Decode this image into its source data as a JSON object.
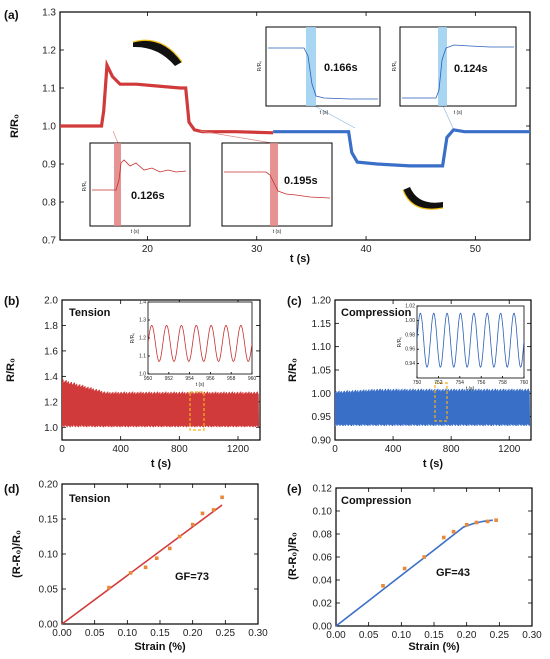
{
  "figure": {
    "panel_labels": [
      "(a)",
      "(b)",
      "(c)",
      "(d)",
      "(e)"
    ],
    "annotations": {
      "b_title": "Tension",
      "c_title": "Compression",
      "d_title": "Tension",
      "e_title": "Compression",
      "d_gf": "GF=73",
      "e_gf": "GF=43",
      "a_time_1": "0.126s",
      "a_time_2": "0.195s",
      "a_time_3": "0.166s",
      "a_time_4": "0.124s"
    }
  },
  "chart_data": [
    {
      "id": "a",
      "type": "line",
      "xlabel": "t (s)",
      "ylabel": "R/R₀",
      "xlim": [
        12,
        55
      ],
      "ylim": [
        0.7,
        1.3
      ],
      "xticks": [
        20,
        30,
        40,
        50
      ],
      "yticks": [
        0.7,
        0.8,
        0.9,
        1.0,
        1.1,
        1.2,
        1.3
      ],
      "series": [
        {
          "color": "#d13a3a",
          "x": [
            12,
            14,
            15.8,
            16.0,
            16.3,
            16.8,
            17.5,
            19,
            21,
            23,
            23.5,
            23.8,
            24.3,
            25,
            28,
            31.5
          ],
          "y": [
            1.0,
            1.0,
            1.0,
            1.04,
            1.16,
            1.13,
            1.11,
            1.11,
            1.105,
            1.1,
            1.1,
            1.01,
            0.99,
            0.985,
            0.985,
            0.982
          ]
        },
        {
          "color": "#3a6fc8",
          "x": [
            31.5,
            33,
            35,
            37,
            38.4,
            38.7,
            39.2,
            41,
            44,
            47.0,
            47.4,
            48.0,
            49,
            52,
            55
          ],
          "y": [
            0.985,
            0.985,
            0.985,
            0.985,
            0.985,
            0.93,
            0.905,
            0.9,
            0.895,
            0.895,
            0.97,
            0.99,
            0.985,
            0.985,
            0.985
          ]
        }
      ],
      "insets": [
        {
          "xlabel": "t (s)",
          "ylabel": "R/R₀",
          "label": "0.126s"
        },
        {
          "xlabel": "t (s)",
          "ylabel": "",
          "label": "0.195s"
        },
        {
          "xlabel": "t (s)",
          "ylabel": "R/R₀",
          "label": "0.166s"
        },
        {
          "xlabel": "t (s)",
          "ylabel": "R/R₀",
          "label": "0.124s"
        }
      ]
    },
    {
      "id": "b",
      "type": "line",
      "title": "Tension",
      "xlabel": "t (s)",
      "ylabel": "R/R₀",
      "xlim": [
        0,
        1350
      ],
      "ylim": [
        0.9,
        2.0
      ],
      "xticks": [
        0,
        400,
        800,
        1200
      ],
      "yticks": [
        1.0,
        1.2,
        1.4,
        1.6,
        1.8,
        2.0
      ],
      "band": {
        "lower": 1.0,
        "upper_start": 1.38,
        "upper_end": 1.28,
        "color": "#d13a3a"
      },
      "inset": {
        "xlim": [
          950,
          960
        ],
        "ylim": [
          1.0,
          1.4
        ],
        "xticks": [
          950,
          952,
          954,
          956,
          958,
          960
        ],
        "yticks": [
          1.0,
          1.1,
          1.2,
          1.3,
          1.4
        ],
        "xlabel": "t (s)",
        "ylabel": "R/R₀",
        "oscillation": {
          "cycles": 7,
          "min": 1.07,
          "max": 1.27
        }
      }
    },
    {
      "id": "c",
      "type": "line",
      "title": "Compression",
      "xlabel": "t (s)",
      "ylabel": "R/R₀",
      "xlim": [
        0,
        1350
      ],
      "ylim": [
        0.9,
        1.2
      ],
      "xticks": [
        0,
        400,
        800,
        1200
      ],
      "yticks": [
        0.9,
        0.95,
        1.0,
        1.05,
        1.1,
        1.15,
        1.2
      ],
      "band": {
        "lower": 0.93,
        "upper_start": 1.005,
        "upper_end": 1.01,
        "color": "#3a6fc8"
      },
      "inset": {
        "xlim": [
          750,
          760
        ],
        "ylim": [
          0.92,
          1.02
        ],
        "xticks": [
          750,
          752,
          754,
          756,
          758,
          760
        ],
        "yticks": [
          0.94,
          0.96,
          0.98,
          1.0,
          1.02
        ],
        "xlabel": "t (s)",
        "ylabel": "R/R₀",
        "oscillation": {
          "cycles": 8,
          "min": 0.935,
          "max": 1.01
        }
      }
    },
    {
      "id": "d",
      "type": "scatter",
      "title": "Tension",
      "xlabel": "Strain (%)",
      "ylabel": "(R-R₀)/R₀",
      "xlim": [
        0,
        0.3
      ],
      "ylim": [
        0,
        0.2
      ],
      "xticks": [
        0.0,
        0.05,
        0.1,
        0.15,
        0.2,
        0.25,
        0.3
      ],
      "yticks": [
        0.0,
        0.05,
        0.1,
        0.15,
        0.2
      ],
      "x": [
        0.072,
        0.105,
        0.128,
        0.145,
        0.165,
        0.18,
        0.2,
        0.215,
        0.232,
        0.245
      ],
      "y": [
        0.052,
        0.073,
        0.081,
        0.094,
        0.108,
        0.125,
        0.142,
        0.158,
        0.163,
        0.181
      ],
      "fit": {
        "x": [
          0.0,
          0.245
        ],
        "y": [
          0.0,
          0.17
        ]
      },
      "annotation": "GF=73"
    },
    {
      "id": "e",
      "type": "scatter",
      "title": "Compression",
      "xlabel": "Strain (%)",
      "ylabel": "(R-R₀)/R₀",
      "xlim": [
        0,
        0.3
      ],
      "ylim": [
        0,
        0.12
      ],
      "xticks": [
        0.0,
        0.05,
        0.1,
        0.15,
        0.2,
        0.25,
        0.3
      ],
      "yticks": [
        0.0,
        0.02,
        0.04,
        0.06,
        0.08,
        0.1,
        0.12
      ],
      "x": [
        0.072,
        0.105,
        0.135,
        0.165,
        0.18,
        0.2,
        0.215,
        0.232,
        0.245
      ],
      "y": [
        0.035,
        0.05,
        0.06,
        0.077,
        0.082,
        0.088,
        0.09,
        0.091,
        0.092
      ],
      "fit": {
        "x": [
          0.0,
          0.05,
          0.1,
          0.15,
          0.195,
          0.21,
          0.225,
          0.24
        ],
        "y": [
          0.0,
          0.022,
          0.044,
          0.066,
          0.086,
          0.089,
          0.091,
          0.092
        ]
      },
      "annotation": "GF=43"
    }
  ]
}
